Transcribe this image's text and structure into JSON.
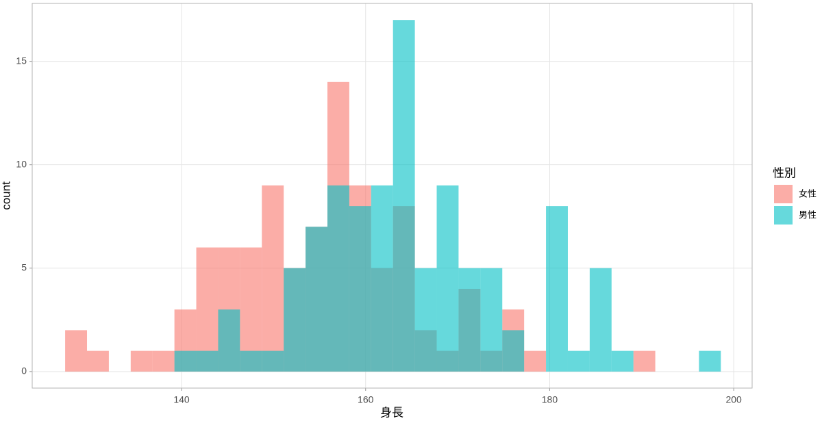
{
  "chart_data": {
    "type": "histogram",
    "x_label": "身長",
    "y_label": "count",
    "legend_title": "性別",
    "bins": [
      127.35,
      129.725,
      132.1,
      134.475,
      136.85,
      139.225,
      141.6,
      143.975,
      146.35,
      148.725,
      151.1,
      153.475,
      155.85,
      158.225,
      160.6,
      162.975,
      165.35,
      167.725,
      170.1,
      172.475,
      174.85,
      177.225,
      179.6,
      181.975,
      184.35,
      186.725,
      189.1,
      191.475,
      193.85,
      196.225,
      198.6
    ],
    "series": [
      {
        "name": "女性",
        "color": "#F8766D",
        "values": [
          2,
          1,
          0,
          1,
          1,
          3,
          6,
          6,
          6,
          9,
          5,
          7,
          14,
          9,
          5,
          8,
          2,
          1,
          4,
          1,
          3,
          1,
          0,
          0,
          0,
          0,
          1,
          0,
          0,
          0
        ]
      },
      {
        "name": "男性",
        "color": "#00BFC4",
        "values": [
          0,
          0,
          0,
          0,
          0,
          1,
          1,
          3,
          1,
          1,
          5,
          7,
          9,
          8,
          9,
          17,
          5,
          9,
          5,
          5,
          2,
          0,
          8,
          1,
          5,
          1,
          0,
          0,
          0,
          1
        ]
      }
    ],
    "opacity": 0.6,
    "xlim": [
      123.77,
      202.0
    ],
    "ylim": [
      -0.8,
      17.8
    ],
    "xticks": [
      140,
      160,
      180,
      200
    ],
    "yticks": [
      0,
      5,
      10,
      15
    ],
    "grid": true,
    "legend": "right"
  }
}
